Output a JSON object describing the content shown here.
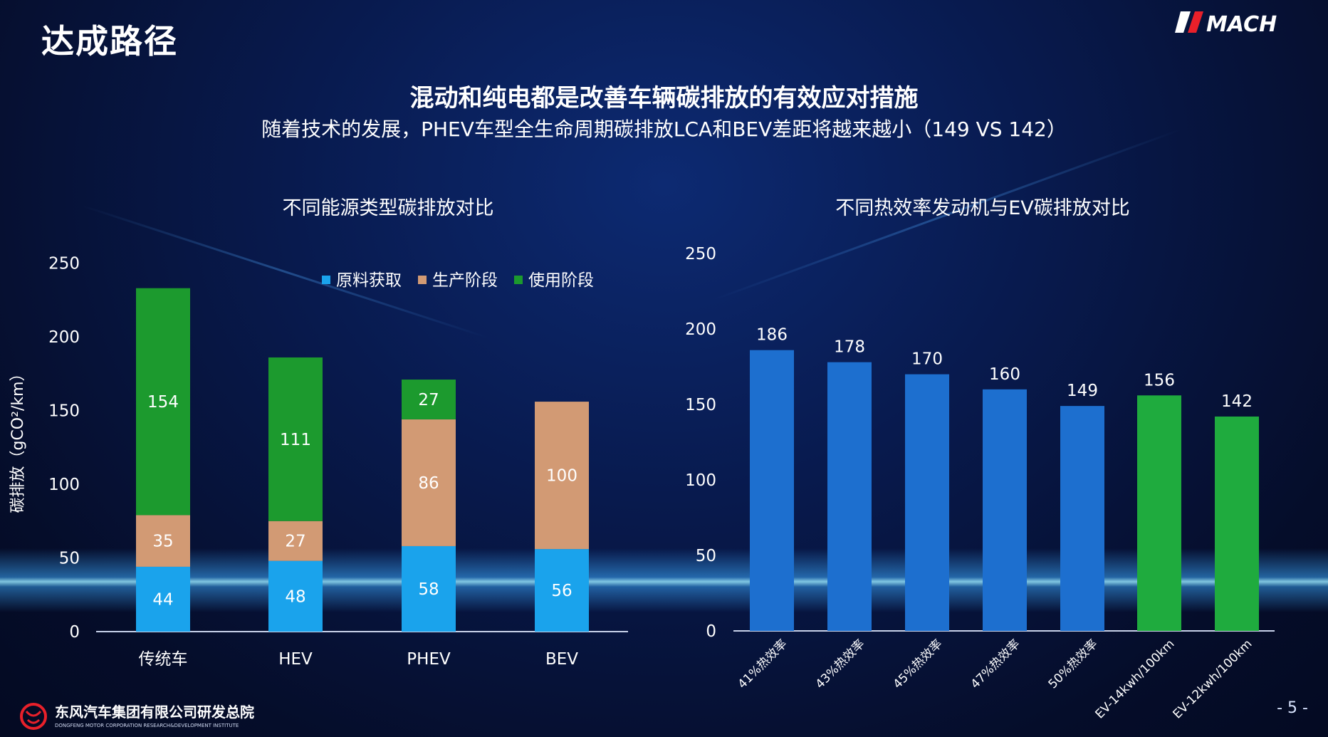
{
  "header": {
    "title": "达成路径",
    "logo_text": "MACH"
  },
  "headline": "混动和纯电都是改善车辆碳排放的有效应对措施",
  "subheadline": "随着技术的发展，PHEV车型全生命周期碳排放LCA和BEV差距将越来越小（149 VS 142）",
  "footer": {
    "company": "东风汽车集团有限公司研发总院",
    "company_en": "DONGFENG MOTOR CORPORATION RESEARCH&DEVELOPMENT INSTITUTE",
    "page_number": "- 5 -"
  },
  "colors": {
    "raw": "#1aa3ec",
    "production": "#d29a74",
    "use": "#1c9a2e",
    "engine_bar": "#1d6fcf",
    "ev_bar": "#1fab3e"
  },
  "chart_data": [
    {
      "type": "bar",
      "stacked": true,
      "title": "不同能源类型碳排放对比",
      "ylabel": "碳排放（gCO²/km）",
      "xlabel": "",
      "ylim": [
        0,
        250
      ],
      "yticks": [
        0,
        50,
        100,
        150,
        200,
        250
      ],
      "legend_position": "top-right",
      "categories": [
        "传统车",
        "HEV",
        "PHEV",
        "BEV"
      ],
      "series": [
        {
          "name": "原料获取",
          "values": [
            44,
            48,
            58,
            56
          ]
        },
        {
          "name": "生产阶段",
          "values": [
            35,
            27,
            86,
            100
          ]
        },
        {
          "name": "使用阶段",
          "values": [
            154,
            111,
            27,
            0
          ]
        }
      ]
    },
    {
      "type": "bar",
      "title": "不同热效率发动机与EV碳排放对比",
      "xlabel": "",
      "ylabel": "",
      "ylim": [
        0,
        250
      ],
      "yticks": [
        0,
        50,
        100,
        150,
        200,
        250
      ],
      "categories": [
        "41%热效率",
        "43%热效率",
        "45%热效率",
        "47%热效率",
        "50%热效率",
        "EV-14kwh/100km",
        "EV-12kwh/100km"
      ],
      "values": [
        186,
        178,
        170,
        160,
        149,
        156,
        142
      ]
    }
  ]
}
